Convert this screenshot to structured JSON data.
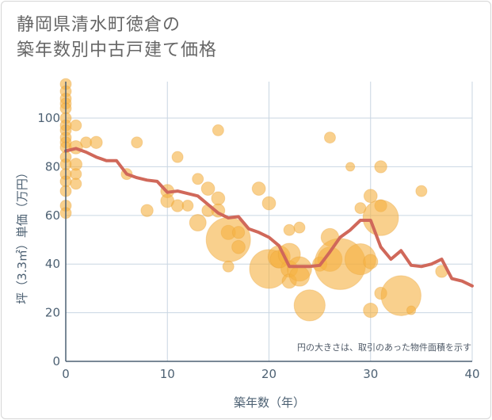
{
  "title_lines": [
    "静岡県清水町徳倉の",
    "築年数別中古戸建て価格"
  ],
  "colors": {
    "bubble": "#f5b041",
    "bubble_stroke": "#e8a23a",
    "line": "#d0685a",
    "grid": "#c9d6e2",
    "axis": "#4d6173"
  },
  "chart_data": {
    "type": "scatter",
    "xlabel": "築年数（年）",
    "ylabel": "坪（3.3㎡）単価（万円）",
    "xlim": [
      0,
      40
    ],
    "ylim": [
      0,
      115
    ],
    "xticks": [
      0,
      10,
      20,
      30,
      40
    ],
    "yticks": [
      0,
      20,
      40,
      60,
      80,
      100
    ],
    "grid": true,
    "note": "円の大きさは、取引のあった物件面積を示す",
    "bubbles": [
      {
        "x": 0,
        "y": 114,
        "s": 1
      },
      {
        "x": 0,
        "y": 111,
        "s": 1
      },
      {
        "x": 0,
        "y": 108,
        "s": 1
      },
      {
        "x": 0,
        "y": 106,
        "s": 1
      },
      {
        "x": 0,
        "y": 104,
        "s": 1
      },
      {
        "x": 0,
        "y": 100,
        "s": 1
      },
      {
        "x": 0,
        "y": 97,
        "s": 1
      },
      {
        "x": 0,
        "y": 95,
        "s": 1
      },
      {
        "x": 0,
        "y": 92,
        "s": 1
      },
      {
        "x": 0,
        "y": 90,
        "s": 1
      },
      {
        "x": 0,
        "y": 88,
        "s": 1
      },
      {
        "x": 0,
        "y": 84,
        "s": 1
      },
      {
        "x": 0,
        "y": 81,
        "s": 1
      },
      {
        "x": 0,
        "y": 77,
        "s": 1
      },
      {
        "x": 0,
        "y": 74,
        "s": 1
      },
      {
        "x": 0,
        "y": 70,
        "s": 1
      },
      {
        "x": 0,
        "y": 64,
        "s": 1
      },
      {
        "x": 0,
        "y": 61,
        "s": 1
      },
      {
        "x": 1,
        "y": 97,
        "s": 1
      },
      {
        "x": 1,
        "y": 88,
        "s": 1.2
      },
      {
        "x": 1,
        "y": 81,
        "s": 1.1
      },
      {
        "x": 1,
        "y": 77,
        "s": 1
      },
      {
        "x": 1,
        "y": 73,
        "s": 1
      },
      {
        "x": 2,
        "y": 90,
        "s": 1
      },
      {
        "x": 3,
        "y": 90,
        "s": 1.1
      },
      {
        "x": 6,
        "y": 77,
        "s": 1
      },
      {
        "x": 7,
        "y": 90,
        "s": 1
      },
      {
        "x": 8,
        "y": 62,
        "s": 1.1
      },
      {
        "x": 10,
        "y": 70,
        "s": 1.2
      },
      {
        "x": 10,
        "y": 66,
        "s": 1.2
      },
      {
        "x": 11,
        "y": 84,
        "s": 1
      },
      {
        "x": 11,
        "y": 64,
        "s": 1.1
      },
      {
        "x": 12,
        "y": 64,
        "s": 1
      },
      {
        "x": 13,
        "y": 75,
        "s": 1
      },
      {
        "x": 13,
        "y": 57,
        "s": 1.5
      },
      {
        "x": 14,
        "y": 71,
        "s": 1.2
      },
      {
        "x": 14,
        "y": 62,
        "s": 1.1
      },
      {
        "x": 15,
        "y": 95,
        "s": 1
      },
      {
        "x": 15,
        "y": 67,
        "s": 1.2
      },
      {
        "x": 15,
        "y": 62,
        "s": 1.2
      },
      {
        "x": 16,
        "y": 53,
        "s": 1.3
      },
      {
        "x": 16,
        "y": 50,
        "s": 4.0
      },
      {
        "x": 16,
        "y": 39,
        "s": 1
      },
      {
        "x": 17,
        "y": 53,
        "s": 1.1
      },
      {
        "x": 17,
        "y": 47,
        "s": 1.2
      },
      {
        "x": 19,
        "y": 71,
        "s": 1.2
      },
      {
        "x": 20,
        "y": 65,
        "s": 1.2
      },
      {
        "x": 20,
        "y": 38,
        "s": 3.5
      },
      {
        "x": 21,
        "y": 43,
        "s": 2.0
      },
      {
        "x": 21,
        "y": 42,
        "s": 1.6
      },
      {
        "x": 22,
        "y": 54,
        "s": 1
      },
      {
        "x": 22,
        "y": 44,
        "s": 2.0
      },
      {
        "x": 22,
        "y": 38,
        "s": 1.5
      },
      {
        "x": 22,
        "y": 33,
        "s": 1.3
      },
      {
        "x": 23,
        "y": 55,
        "s": 1
      },
      {
        "x": 23,
        "y": 38,
        "s": 2.2
      },
      {
        "x": 23,
        "y": 35,
        "s": 1.8
      },
      {
        "x": 24,
        "y": 23,
        "s": 2.8
      },
      {
        "x": 25,
        "y": 40,
        "s": 1.3
      },
      {
        "x": 26,
        "y": 92,
        "s": 1
      },
      {
        "x": 26,
        "y": 51,
        "s": 1.6
      },
      {
        "x": 26,
        "y": 42,
        "s": 2.2
      },
      {
        "x": 27,
        "y": 40,
        "s": 4.6
      },
      {
        "x": 28,
        "y": 80,
        "s": 0.8
      },
      {
        "x": 29,
        "y": 63,
        "s": 1
      },
      {
        "x": 29,
        "y": 42,
        "s": 2.8
      },
      {
        "x": 30,
        "y": 68,
        "s": 1.2
      },
      {
        "x": 30,
        "y": 41,
        "s": 1.3
      },
      {
        "x": 30,
        "y": 21,
        "s": 1.3
      },
      {
        "x": 31,
        "y": 80,
        "s": 1.1
      },
      {
        "x": 31,
        "y": 64,
        "s": 1.1
      },
      {
        "x": 31,
        "y": 59,
        "s": 3.2
      },
      {
        "x": 31,
        "y": 28,
        "s": 1.1
      },
      {
        "x": 33,
        "y": 27,
        "s": 3.6
      },
      {
        "x": 34,
        "y": 21,
        "s": 0.8
      },
      {
        "x": 35,
        "y": 70,
        "s": 1
      },
      {
        "x": 37,
        "y": 37,
        "s": 1.1
      }
    ],
    "series": [
      {
        "x": [
          0,
          1,
          2,
          3,
          4,
          5,
          6,
          7,
          8,
          9,
          10,
          11,
          12,
          13,
          14,
          15,
          16,
          17,
          18,
          19,
          20,
          21,
          22,
          23,
          24,
          25,
          26,
          27,
          28,
          29,
          30,
          31,
          32,
          33,
          34,
          35,
          36,
          37,
          38,
          39,
          40
        ],
        "values": [
          86.5,
          87.5,
          86,
          84,
          82.5,
          82.5,
          77,
          75.5,
          74.5,
          74,
          69.5,
          70,
          69,
          68,
          64.5,
          61,
          59,
          59.5,
          54.5,
          53,
          51,
          47.5,
          39,
          39,
          39,
          39.5,
          45,
          51,
          54,
          58,
          58,
          47,
          42,
          45.5,
          39.5,
          39,
          40,
          42,
          34,
          33,
          31
        ]
      }
    ]
  }
}
